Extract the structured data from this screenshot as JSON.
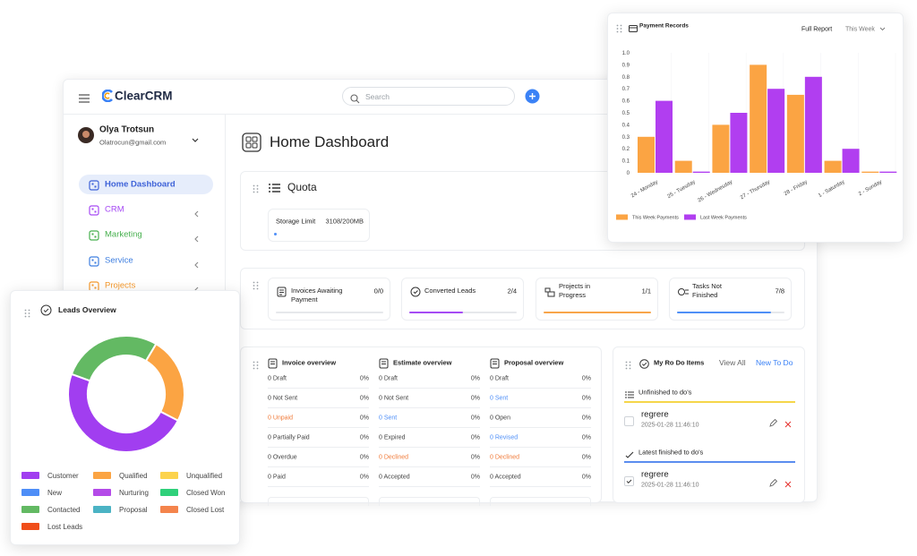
{
  "header": {
    "logo": "ClearCRM",
    "search_placeholder": "Search"
  },
  "user": {
    "name": "Olya Trotsun",
    "email": "Olatrocun@gmail.com"
  },
  "sidebar": {
    "items": [
      {
        "label": "Home Dashboard",
        "color": "#3f63d8",
        "active": true
      },
      {
        "label": "CRM",
        "color": "#a64bf4"
      },
      {
        "label": "Marketing",
        "color": "#48b04f"
      },
      {
        "label": "Service",
        "color": "#3f7fe0"
      },
      {
        "label": "Projects",
        "color": "#f59a2e"
      }
    ]
  },
  "page_title": "Home Dashboard",
  "quota": {
    "title": "Quota",
    "label": "Storage Limit",
    "value": "3108/200MB"
  },
  "stats": [
    {
      "label": "Invoices Awaiting Payment",
      "value": "0/0",
      "color": "#d7dbe0"
    },
    {
      "label": "Converted Leads",
      "value": "2/4",
      "color": "#a64bf4"
    },
    {
      "label": "Projects in Progress",
      "value": "1/1",
      "color": "#f8a54a"
    },
    {
      "label": "Tasks Not Finished",
      "value": "7/8",
      "color": "#4f8ff7"
    }
  ],
  "overviews": [
    {
      "title": "Invoice overview",
      "rows": [
        {
          "label": "0 Draft",
          "pct": "0%"
        },
        {
          "label": "0 Not Sent",
          "pct": "0%"
        },
        {
          "label": "0 Unpaid",
          "pct": "0%",
          "color": "#f07b3a"
        },
        {
          "label": "0 Partially Paid",
          "pct": "0%"
        },
        {
          "label": "0 Overdue",
          "pct": "0%"
        },
        {
          "label": "0 Paid",
          "pct": "0%"
        }
      ]
    },
    {
      "title": "Estimate overview",
      "rows": [
        {
          "label": "0 Draft",
          "pct": "0%"
        },
        {
          "label": "0 Not Sent",
          "pct": "0%"
        },
        {
          "label": "0 Sent",
          "pct": "0%",
          "color": "#4f8ff7"
        },
        {
          "label": "0 Expired",
          "pct": "0%"
        },
        {
          "label": "0 Declined",
          "pct": "0%",
          "color": "#f07b3a"
        },
        {
          "label": "0 Accepted",
          "pct": "0%"
        }
      ]
    },
    {
      "title": "Proposal overview",
      "rows": [
        {
          "label": "0 Draft",
          "pct": "0%"
        },
        {
          "label": "0 Sent",
          "pct": "0%",
          "color": "#4f8ff7"
        },
        {
          "label": "0 Open",
          "pct": "0%"
        },
        {
          "label": "0 Revised",
          "pct": "0%",
          "color": "#4f8ff7"
        },
        {
          "label": "0 Declined",
          "pct": "0%",
          "color": "#f07b3a"
        },
        {
          "label": "0 Accepted",
          "pct": "0%"
        }
      ]
    }
  ],
  "todo": {
    "title": "My Ro Do Items",
    "view_all": "View All",
    "new": "New To Do",
    "unfinished_title": "Unfinished to do's",
    "finished_title": "Latest finished to do's",
    "unfinished": [
      {
        "text": "regrere",
        "date": "2025-01-28 11:46:10"
      }
    ],
    "finished": [
      {
        "text": "regrere",
        "date": "2025-01-28 11:46:10"
      }
    ]
  },
  "chart_data": [
    {
      "type": "bar",
      "title": "Payment Records",
      "full_report": "Full Report",
      "period": "This Week",
      "categories": [
        "24 - Monday",
        "25 - Tuesday",
        "26 - Wednesday",
        "27 - Thursday",
        "28 - Friday",
        "1 - Saturday",
        "2 - Sunday"
      ],
      "series": [
        {
          "name": "This Week Payments",
          "color": "#fba443",
          "values": [
            0.3,
            0.1,
            0.4,
            0.9,
            0.65,
            0.1,
            0.01
          ]
        },
        {
          "name": "Last Week Payments",
          "color": "#b13ef0",
          "values": [
            0.6,
            0.01,
            0.5,
            0.7,
            0.8,
            0.2,
            0.01
          ]
        }
      ],
      "ylim": [
        0,
        1
      ],
      "yticks": [
        0,
        0.1,
        0.2,
        0.3,
        0.4,
        0.5,
        0.6,
        0.7,
        0.8,
        0.9,
        {
          "value": 1,
          "label": "1.0"
        }
      ],
      "legend": "bottom-left"
    },
    {
      "type": "pie",
      "title": "Leads Overview",
      "donut": true,
      "categories": [
        "Customer",
        "Qualified",
        "Unqualified",
        "New",
        "Nurturing",
        "Closed Won",
        "Contacted",
        "Proposal",
        "Closed Lost",
        "Lost Leads"
      ],
      "values": [
        48,
        24,
        0,
        0,
        0,
        0,
        28,
        0,
        0,
        0
      ],
      "colors": [
        "#a13ef0",
        "#fba443",
        "#fcd34d",
        "#4e8ef7",
        "#b44ae8",
        "#2fd07a",
        "#63b963",
        "#4bb3c4",
        "#f4844c",
        "#f04e1a"
      ]
    }
  ]
}
